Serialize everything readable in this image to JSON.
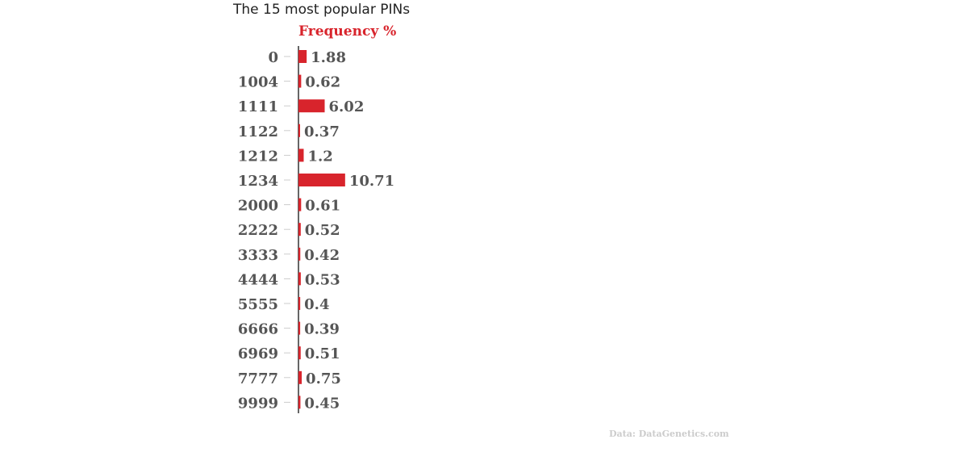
{
  "chart_data": {
    "type": "bar",
    "orientation": "horizontal",
    "title": "The 15 most popular PINs",
    "xlabel": "Frequency %",
    "categories": [
      "0",
      "1004",
      "1111",
      "1122",
      "1212",
      "1234",
      "2000",
      "2222",
      "3333",
      "4444",
      "5555",
      "6666",
      "6969",
      "7777",
      "9999"
    ],
    "values": [
      1.88,
      0.62,
      6.02,
      0.37,
      1.2,
      10.71,
      0.61,
      0.52,
      0.42,
      0.53,
      0.4,
      0.39,
      0.51,
      0.75,
      0.45
    ],
    "value_labels": [
      "1.88",
      "0.62",
      "6.02",
      "0.37",
      "1.2",
      "10.71",
      "0.61",
      "0.52",
      "0.42",
      "0.53",
      "0.4",
      "0.39",
      "0.51",
      "0.75",
      "0.45"
    ],
    "bar_color": "#d8242c",
    "grid": false,
    "source": "Data: DataGenetics.com"
  }
}
